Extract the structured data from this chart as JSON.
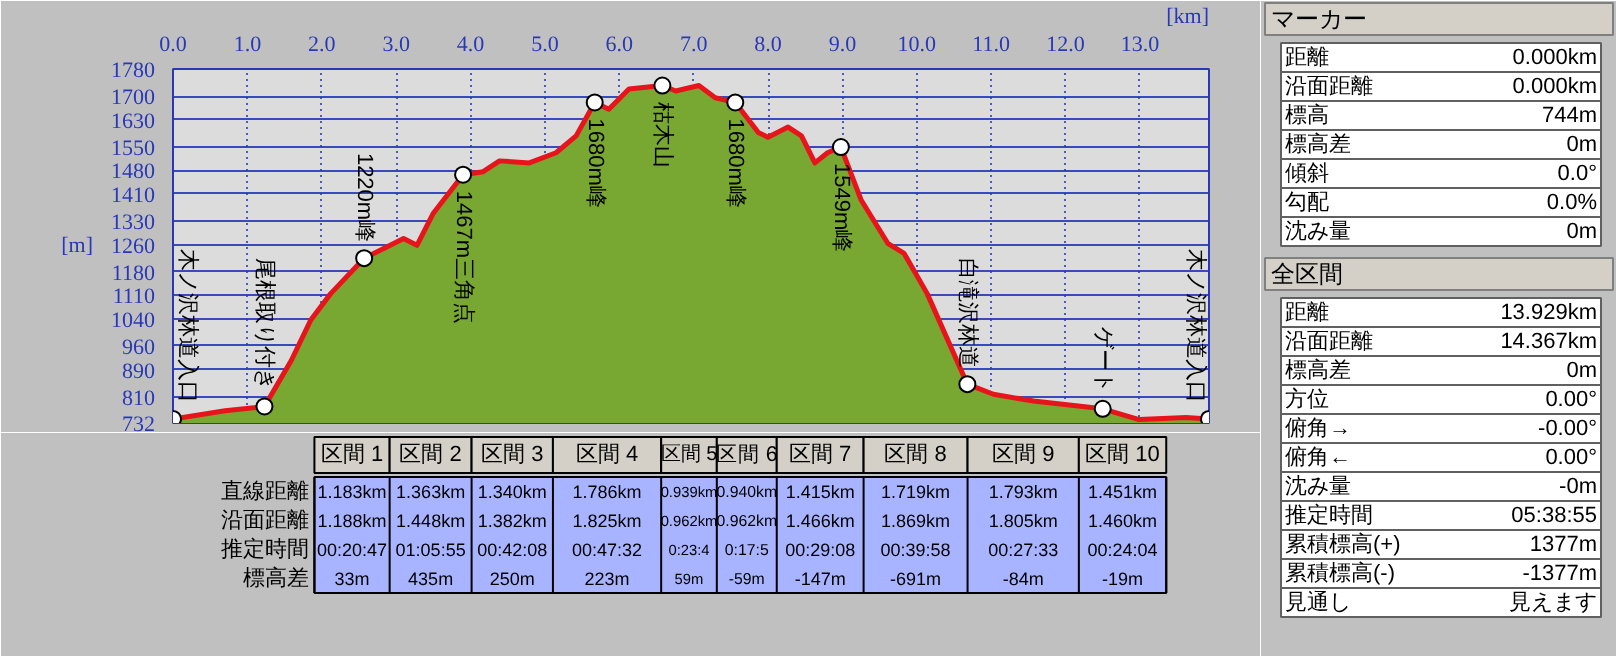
{
  "chart_data": {
    "type": "area",
    "ylabel": "[m]",
    "xlabel": "[km]",
    "grid": true,
    "legend": false,
    "xlim": [
      0,
      13.929
    ],
    "ylim": [
      732,
      1780
    ],
    "xticks": [
      {
        "value": 0,
        "label": "0.0"
      },
      {
        "value": 1,
        "label": "1.0"
      },
      {
        "value": 2,
        "label": "2.0"
      },
      {
        "value": 3,
        "label": "3.0"
      },
      {
        "value": 4,
        "label": "4.0"
      },
      {
        "value": 5,
        "label": "5.0"
      },
      {
        "value": 6,
        "label": "6.0"
      },
      {
        "value": 7,
        "label": "7.0"
      },
      {
        "value": 8,
        "label": "8.0"
      },
      {
        "value": 9,
        "label": "9.0"
      },
      {
        "value": 10,
        "label": "10.0"
      },
      {
        "value": 11,
        "label": "11.0"
      },
      {
        "value": 12,
        "label": "12.0"
      },
      {
        "value": 13,
        "label": "13.0"
      }
    ],
    "yticks": [
      732,
      810,
      890,
      960,
      1040,
      1110,
      1180,
      1260,
      1330,
      1410,
      1480,
      1550,
      1630,
      1700,
      1780
    ],
    "series": [
      {
        "color": "#78a832",
        "x": [
          0,
          0.7,
          1.23,
          1.59,
          1.85,
          2.12,
          2.57,
          2.88,
          3.1,
          3.28,
          3.5,
          3.9,
          4.17,
          4.39,
          4.79,
          5.15,
          5.42,
          5.67,
          5.86,
          6.13,
          6.58,
          6.76,
          7.07,
          7.29,
          7.56,
          7.87,
          8.0,
          8.27,
          8.45,
          8.63,
          8.8,
          8.98,
          9.25,
          9.61,
          9.83,
          10.14,
          10.68,
          11.03,
          11.57,
          12.5,
          12.99,
          13.62,
          13.929
        ],
        "values": [
          744,
          768,
          781,
          917,
          1036,
          1115,
          1220,
          1254,
          1278,
          1258,
          1353,
          1467,
          1476,
          1508,
          1502,
          1532,
          1582,
          1681,
          1661,
          1721,
          1731,
          1715,
          1731,
          1695,
          1681,
          1592,
          1578,
          1608,
          1582,
          1502,
          1532,
          1549,
          1393,
          1264,
          1234,
          1115,
          847,
          817,
          797,
          774,
          742,
          748,
          744
        ]
      },
      {
        "type": "line",
        "color": "#e8141c",
        "x": [
          0,
          0.7,
          1.23,
          1.59,
          1.85,
          2.12,
          2.57,
          2.88,
          3.1,
          3.28,
          3.5,
          3.9,
          4.17,
          4.39,
          4.79,
          5.15,
          5.42,
          5.67,
          5.86,
          6.13,
          6.58,
          6.76,
          7.07,
          7.29,
          7.56,
          7.87,
          8.0,
          8.27,
          8.45,
          8.63,
          8.8,
          8.98,
          9.25,
          9.61,
          9.83,
          10.14,
          10.68,
          11.03,
          11.57,
          12.5,
          12.99,
          13.62,
          13.929
        ],
        "values": [
          744,
          768,
          781,
          917,
          1036,
          1115,
          1220,
          1254,
          1278,
          1258,
          1353,
          1467,
          1476,
          1508,
          1502,
          1532,
          1582,
          1681,
          1661,
          1721,
          1731,
          1715,
          1731,
          1695,
          1681,
          1592,
          1578,
          1608,
          1582,
          1502,
          1532,
          1549,
          1393,
          1264,
          1234,
          1115,
          847,
          817,
          797,
          774,
          742,
          748,
          744
        ]
      }
    ],
    "annotations": [
      {
        "text": "木ノ沢林道入口",
        "x": 0,
        "y": 744
      },
      {
        "text": "尾根取り付き",
        "x": 1.23,
        "y": 781
      },
      {
        "text": "1220m峰",
        "x": 2.57,
        "y": 1220
      },
      {
        "text": "1467m三角点",
        "x": 3.9,
        "y": 1467
      },
      {
        "text": "1680m峰",
        "x": 5.67,
        "y": 1681
      },
      {
        "text": "枯木山",
        "x": 6.58,
        "y": 1731
      },
      {
        "text": "1680m峰",
        "x": 7.56,
        "y": 1681
      },
      {
        "text": "1549m峰",
        "x": 8.98,
        "y": 1549
      },
      {
        "text": "白滝沢林道",
        "x": 10.68,
        "y": 847
      },
      {
        "text": "ゲート",
        "x": 12.5,
        "y": 774
      },
      {
        "text": "木ノ沢林道入口",
        "x": 13.929,
        "y": 744
      },
      "区間 1",
      "区間 2",
      "区間 3",
      "区間 4",
      "区間 5",
      "区間 6",
      "区間 7",
      "区間 8",
      "区間 9",
      "区間 10",
      "直線距離",
      "1.183km",
      "1.363km",
      "1.340km",
      "1.786km",
      "0.939km",
      "0.940km",
      "1.415km",
      "1.719km",
      "1.793km",
      "1.451km",
      "沿面距離",
      "1.188km",
      "1.448km",
      "1.382km",
      "1.825km",
      "0.962km",
      "0.962km",
      "1.466km",
      "1.869km",
      "1.805km",
      "1.460km",
      "推定時間",
      "00:20:47",
      "01:05:55",
      "00:42:08",
      "00:47:32",
      "0:23:4",
      "0:17:5",
      "00:29:08",
      "00:39:58",
      "00:27:33",
      "00:24:04",
      "標高差",
      "33m",
      "435m",
      "250m",
      "223m",
      "59m",
      "-59m",
      "-147m",
      "-691m",
      "-84m",
      "-19m",
      "マーカー",
      "距離",
      "0.000km",
      "沿面距離",
      "0.000km",
      "標高",
      "744m",
      "標高差",
      "0m",
      "傾斜",
      "0.0°",
      "勾配",
      "0.0%",
      "沈み量",
      "0m",
      "全区間",
      "距離",
      "13.929km",
      "沿面距離",
      "14.367km",
      "標高差",
      "0m",
      "方位",
      "0.00°",
      "俯角→",
      "-0.00°",
      "俯角←",
      "0.00°",
      "沈み量",
      "-0m",
      "推定時間",
      "05:38:55",
      "累積標高(+)",
      "1377m",
      "累積標高(-)",
      "-1377m",
      "見通し",
      "見えます"
    ]
  }
}
